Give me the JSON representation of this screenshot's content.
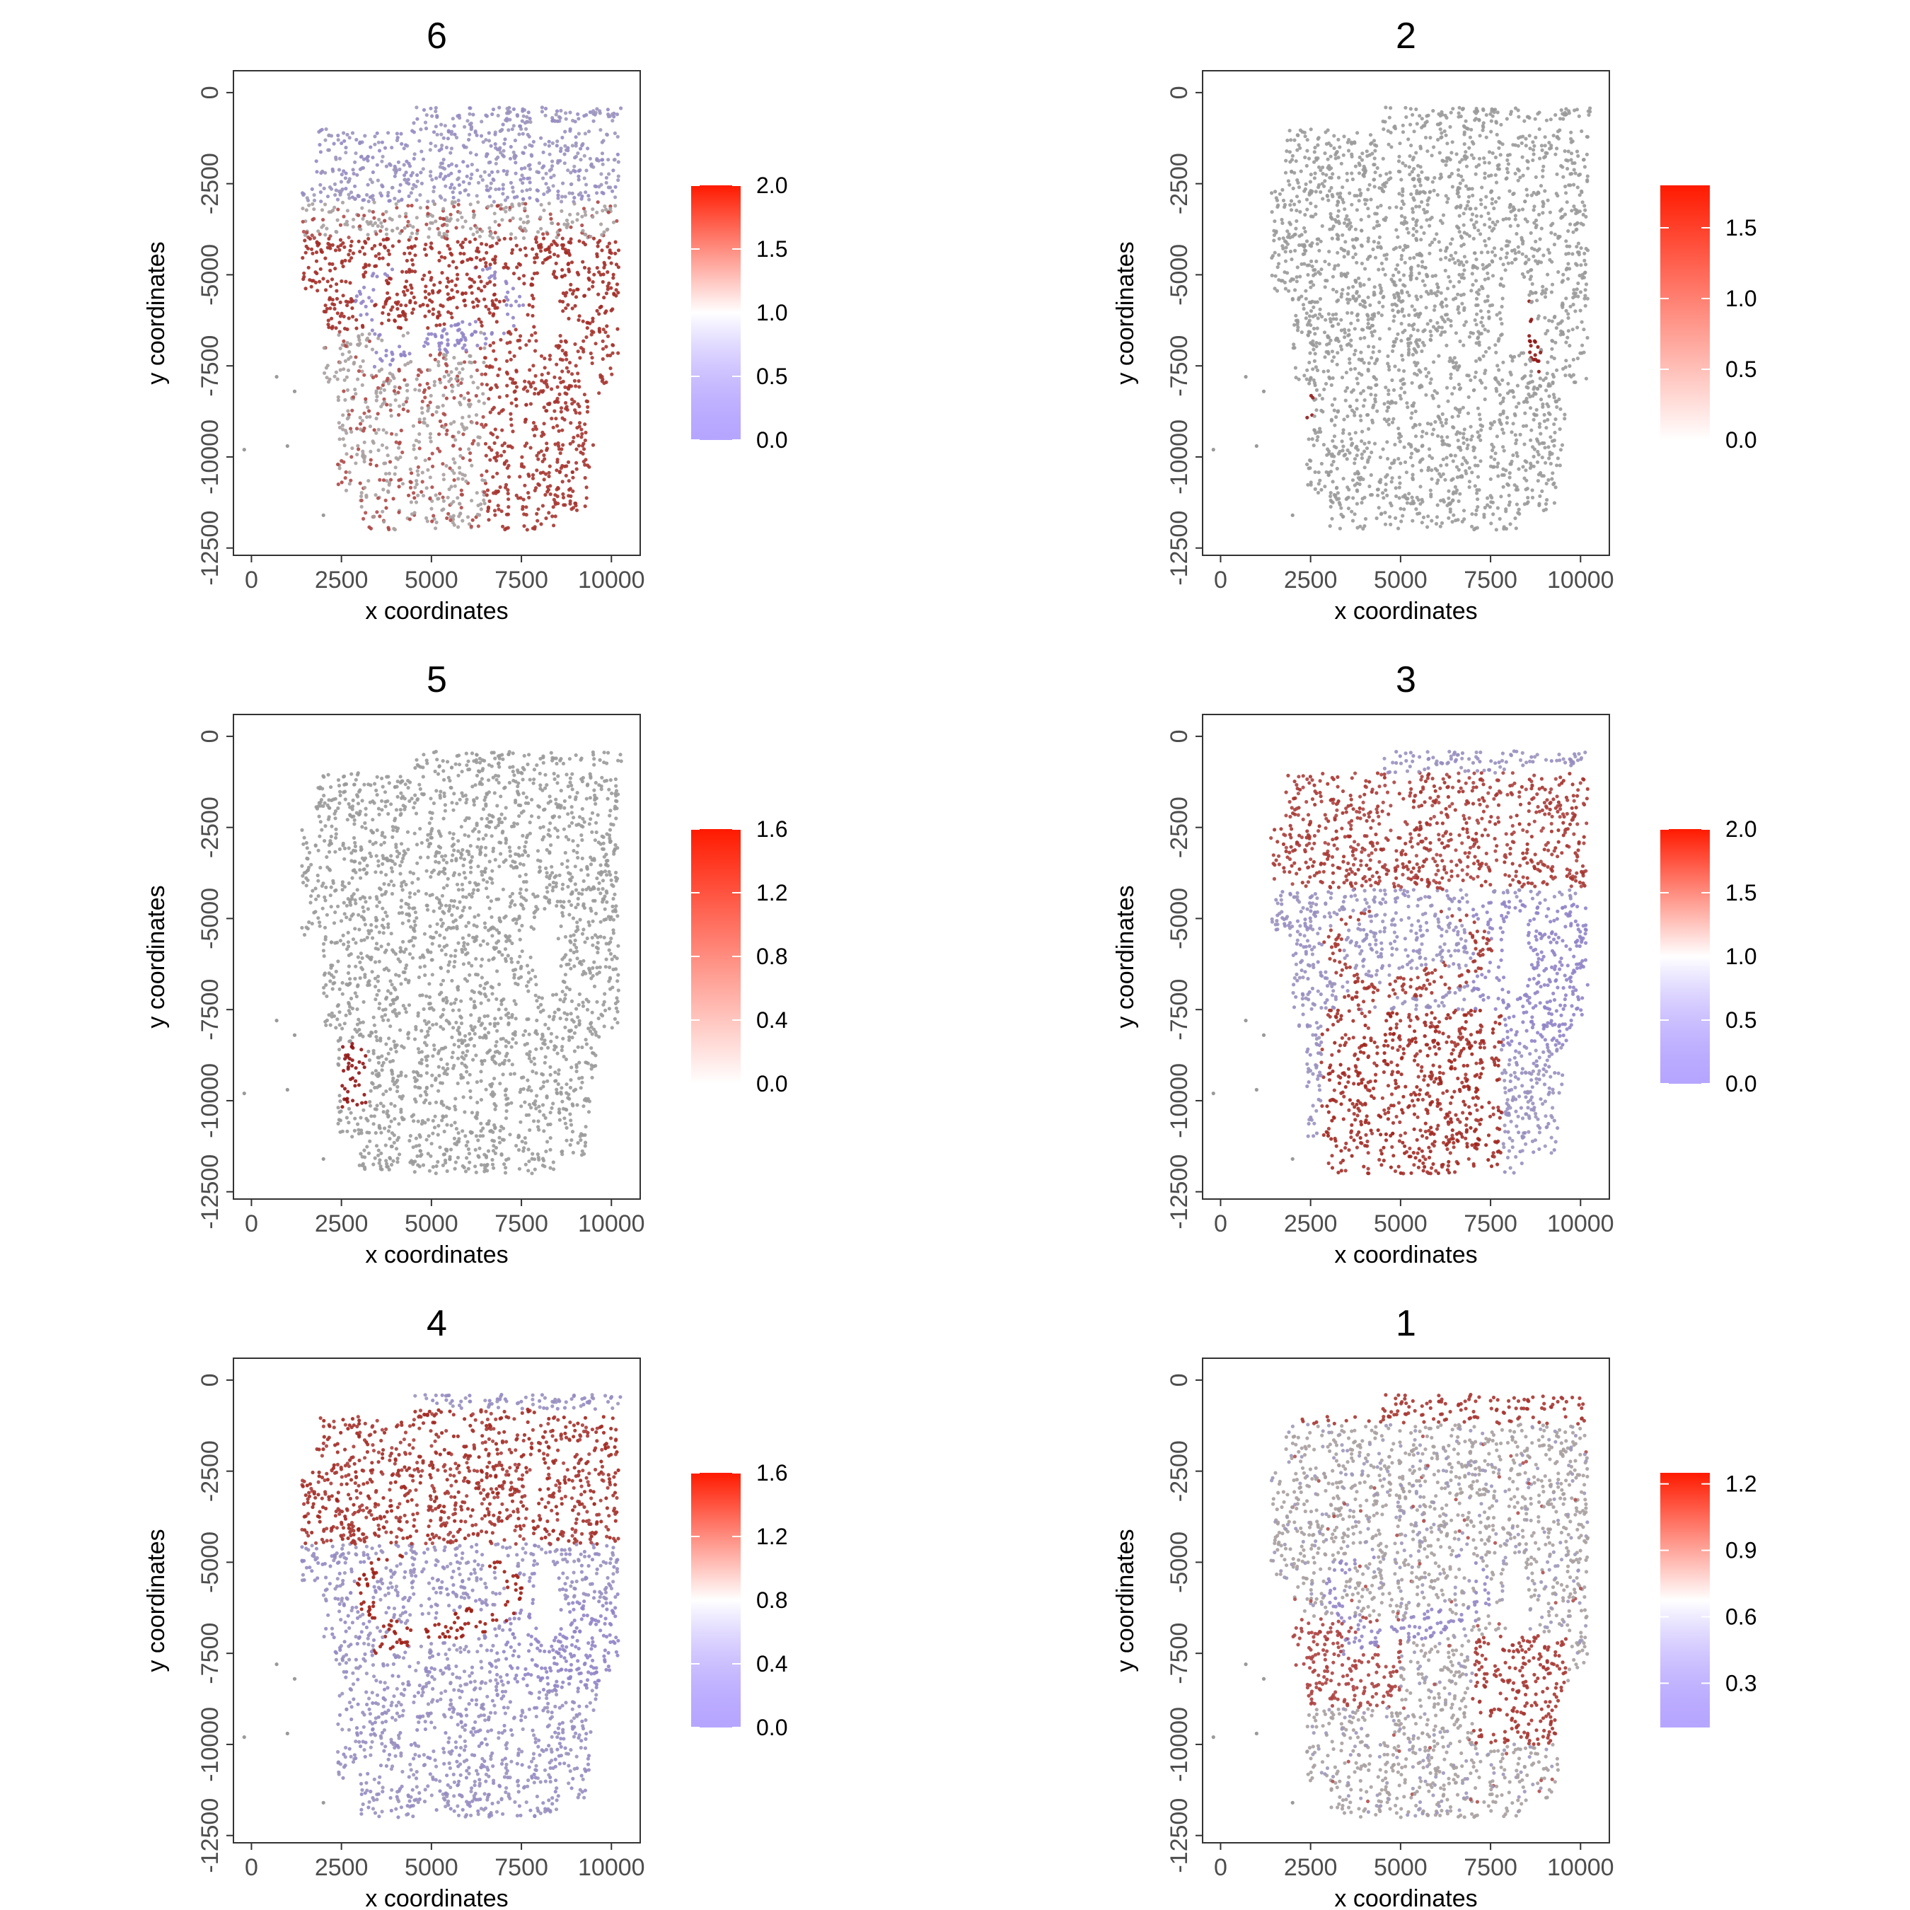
{
  "axes": {
    "xlabel": "x coordinates",
    "ylabel": "y coordinates"
  },
  "colors": {
    "low": "#7B5CFF",
    "mid": "#FFFFFF",
    "high": "#FF1A00",
    "neutral_point": "#9A9A9A",
    "dark_red_point": "#8B1A1A",
    "panel_border": "#333333"
  },
  "chart_data": [
    {
      "type": "scatter",
      "title": "6",
      "xlabel": "x coordinates",
      "ylabel": "y coordinates",
      "xlim": [
        -500,
        10800
      ],
      "ylim": [
        -12700,
        600
      ],
      "x_ticks": [
        "0",
        "2500",
        "5000",
        "7500",
        "10000"
      ],
      "y_ticks": [
        "0",
        "-2500",
        "-5000",
        "-7500",
        "-10000",
        "-12500"
      ],
      "color_scale": {
        "diverging": true,
        "min": 0.0,
        "max": 2.0,
        "ticks": [
          "2.0",
          "1.5",
          "1.0",
          "0.5",
          "0.0"
        ]
      },
      "high_regions": "cortical band around y -4000 to -6500 and lower right region x 6500-10000, y -6500 to -12000",
      "legend": "right"
    },
    {
      "type": "scatter",
      "title": "2",
      "xlabel": "x coordinates",
      "ylabel": "y coordinates",
      "xlim": [
        -500,
        10800
      ],
      "ylim": [
        -12700,
        600
      ],
      "x_ticks": [
        "0",
        "2500",
        "5000",
        "7500",
        "10000"
      ],
      "y_ticks": [
        "0",
        "-2500",
        "-5000",
        "-7500",
        "-10000",
        "-12500"
      ],
      "color_scale": {
        "diverging": false,
        "min": 0.0,
        "max": 1.8,
        "ticks": [
          "1.5",
          "1.0",
          "0.5",
          "0.0"
        ]
      },
      "high_regions": "thin streak near x 8500, y -5000 to -7500 and small patch near x 2300, y -8500",
      "legend": "right"
    },
    {
      "type": "scatter",
      "title": "5",
      "xlabel": "x coordinates",
      "ylabel": "y coordinates",
      "xlim": [
        -500,
        10800
      ],
      "ylim": [
        -12700,
        600
      ],
      "x_ticks": [
        "0",
        "2500",
        "5000",
        "7500",
        "10000"
      ],
      "y_ticks": [
        "0",
        "-2500",
        "-5000",
        "-7500",
        "-10000",
        "-12500"
      ],
      "color_scale": {
        "diverging": false,
        "min": 0.0,
        "max": 1.6,
        "ticks": [
          "1.6",
          "1.2",
          "0.8",
          "0.4",
          "0.0"
        ]
      },
      "high_regions": "small patch near x 2800, y -8500 to -10000",
      "legend": "right"
    },
    {
      "type": "scatter",
      "title": "3",
      "xlabel": "x coordinates",
      "ylabel": "y coordinates",
      "xlim": [
        -500,
        10800
      ],
      "ylim": [
        -12700,
        600
      ],
      "x_ticks": [
        "0",
        "2500",
        "5000",
        "7500",
        "10000"
      ],
      "y_ticks": [
        "0",
        "-2500",
        "-5000",
        "-7500",
        "-10000",
        "-12500"
      ],
      "color_scale": {
        "diverging": true,
        "min": 0.0,
        "max": 2.0,
        "ticks": [
          "2.0",
          "1.5",
          "1.0",
          "0.5",
          "0.0"
        ]
      },
      "high_regions": "upper cortex y -1000 to -4000, hippocampal arc, and lower region x 3000-7500, y -7500 to -12000",
      "legend": "right"
    },
    {
      "type": "scatter",
      "title": "4",
      "xlabel": "x coordinates",
      "ylabel": "y coordinates",
      "xlim": [
        -500,
        10800
      ],
      "ylim": [
        -12700,
        600
      ],
      "x_ticks": [
        "0",
        "2500",
        "5000",
        "7500",
        "10000"
      ],
      "y_ticks": [
        "0",
        "-2500",
        "-5000",
        "-7500",
        "-10000",
        "-12500"
      ],
      "color_scale": {
        "diverging": true,
        "min": 0.0,
        "max": 1.6,
        "ticks": [
          "1.6",
          "1.2",
          "0.8",
          "0.4",
          "0.0"
        ]
      },
      "high_regions": "hippocampal arc (dense) and upper cortex band y -1000 to -4500",
      "legend": "right"
    },
    {
      "type": "scatter",
      "title": "1",
      "xlabel": "x coordinates",
      "ylabel": "y coordinates",
      "xlim": [
        -500,
        10800
      ],
      "ylim": [
        -12700,
        600
      ],
      "x_ticks": [
        "0",
        "2500",
        "5000",
        "7500",
        "10000"
      ],
      "y_ticks": [
        "0",
        "-2500",
        "-5000",
        "-7500",
        "-10000",
        "-12500"
      ],
      "color_scale": {
        "diverging": true,
        "min": 0.1,
        "max": 1.25,
        "ticks": [
          "1.2",
          "0.9",
          "0.6",
          "0.3"
        ]
      },
      "high_regions": "top edge of section, thalamic region x 7000-9500, y -7000 to -10000",
      "legend": "right"
    }
  ]
}
